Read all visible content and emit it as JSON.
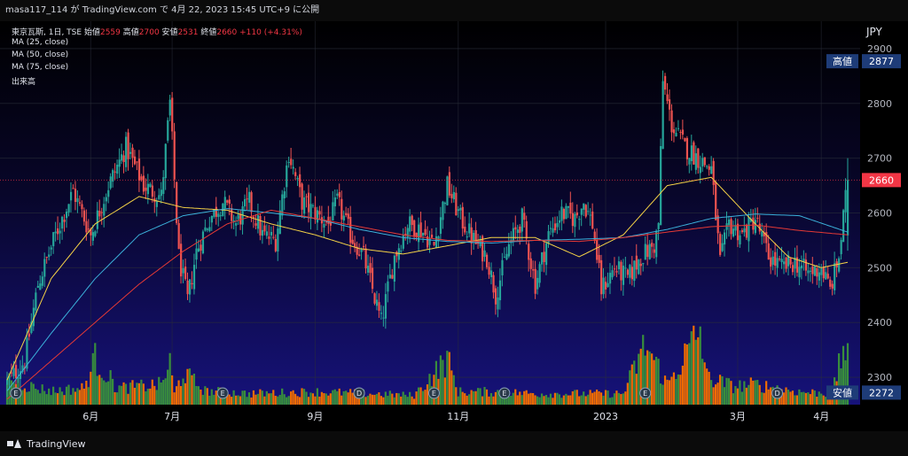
{
  "header": {
    "attribution": "masa117_114 が TradingView.com で 4月 22, 2023 15:45 UTC+9 に公開"
  },
  "legend": {
    "symbol_line_prefix": "東京瓦斯, 1日, TSE",
    "open_label": "始値",
    "open_value": "2559",
    "high_label": "高値",
    "high_value": "2700",
    "low_label": "安値",
    "low_value": "2531",
    "close_label": "終値",
    "close_value": "2660",
    "change": "+110 (+4.31%)",
    "ma25": "MA (25, close)",
    "ma50": "MA (50, close)",
    "ma75": "MA (75, close)",
    "volume": "出来高"
  },
  "price_scale": {
    "currency": "JPY",
    "high_tag_label": "高値",
    "high_tag_value": "2877",
    "last_price_tag": "2660",
    "low_tag_label": "安値",
    "low_tag_value": "2272"
  },
  "footer": {
    "brand": "TradingView"
  },
  "colors": {
    "up": "#26a69a",
    "down": "#ef5350",
    "ma25": "#f5d246",
    "ma50": "#3bb0d9",
    "ma75": "#e53935",
    "vol_up": "#388e3c",
    "vol_down": "#ef6c00",
    "tag_blue": "#1e3c78",
    "tag_red": "#f23645"
  },
  "chart_data": {
    "type": "candlestick",
    "title": "東京瓦斯, 1日, TSE",
    "ylabel": "JPY",
    "ylim": [
      2250,
      2950
    ],
    "yticks": [
      2300,
      2400,
      2500,
      2600,
      2700,
      2800,
      2900
    ],
    "x_tick_labels": [
      "6月",
      "7月",
      "9月",
      "11月",
      "2023",
      "3月",
      "4月"
    ],
    "last": {
      "open": 2559,
      "high": 2700,
      "low": 2531,
      "close": 2660,
      "change": 110,
      "change_pct": 4.31
    },
    "period_high": 2877,
    "period_low": 2272,
    "series": [
      {
        "name": "MA (25, close)",
        "anchors": [
          [
            0,
            2295
          ],
          [
            20,
            2480
          ],
          [
            40,
            2580
          ],
          [
            60,
            2630
          ],
          [
            80,
            2610
          ],
          [
            100,
            2605
          ],
          [
            120,
            2580
          ],
          [
            140,
            2560
          ],
          [
            160,
            2535
          ],
          [
            180,
            2525
          ],
          [
            200,
            2540
          ],
          [
            220,
            2555
          ],
          [
            240,
            2555
          ],
          [
            260,
            2520
          ],
          [
            280,
            2560
          ],
          [
            300,
            2650
          ],
          [
            320,
            2665
          ],
          [
            340,
            2580
          ],
          [
            355,
            2520
          ],
          [
            370,
            2500
          ],
          [
            382,
            2510
          ]
        ]
      },
      {
        "name": "MA (50, close)",
        "anchors": [
          [
            0,
            2275
          ],
          [
            20,
            2380
          ],
          [
            40,
            2480
          ],
          [
            60,
            2560
          ],
          [
            80,
            2595
          ],
          [
            100,
            2608
          ],
          [
            120,
            2600
          ],
          [
            140,
            2590
          ],
          [
            160,
            2570
          ],
          [
            180,
            2555
          ],
          [
            200,
            2548
          ],
          [
            220,
            2545
          ],
          [
            240,
            2550
          ],
          [
            260,
            2552
          ],
          [
            280,
            2555
          ],
          [
            300,
            2570
          ],
          [
            320,
            2590
          ],
          [
            340,
            2598
          ],
          [
            360,
            2595
          ],
          [
            382,
            2565
          ]
        ]
      },
      {
        "name": "MA (75, close)",
        "anchors": [
          [
            0,
            2260
          ],
          [
            20,
            2330
          ],
          [
            40,
            2400
          ],
          [
            60,
            2470
          ],
          [
            80,
            2530
          ],
          [
            100,
            2580
          ],
          [
            120,
            2605
          ],
          [
            140,
            2590
          ],
          [
            160,
            2575
          ],
          [
            180,
            2560
          ],
          [
            200,
            2550
          ],
          [
            220,
            2548
          ],
          [
            240,
            2550
          ],
          [
            260,
            2548
          ],
          [
            280,
            2555
          ],
          [
            300,
            2565
          ],
          [
            320,
            2575
          ],
          [
            340,
            2578
          ],
          [
            360,
            2568
          ],
          [
            382,
            2560
          ]
        ]
      }
    ],
    "price_anchors": [
      [
        0,
        2290
      ],
      [
        8,
        2330
      ],
      [
        14,
        2470
      ],
      [
        22,
        2560
      ],
      [
        30,
        2640
      ],
      [
        38,
        2560
      ],
      [
        46,
        2650
      ],
      [
        54,
        2720
      ],
      [
        62,
        2650
      ],
      [
        70,
        2630
      ],
      [
        74,
        2800
      ],
      [
        78,
        2520
      ],
      [
        82,
        2440
      ],
      [
        86,
        2530
      ],
      [
        92,
        2590
      ],
      [
        98,
        2620
      ],
      [
        104,
        2580
      ],
      [
        110,
        2620
      ],
      [
        116,
        2560
      ],
      [
        122,
        2550
      ],
      [
        128,
        2710
      ],
      [
        134,
        2620
      ],
      [
        140,
        2600
      ],
      [
        146,
        2580
      ],
      [
        150,
        2620
      ],
      [
        156,
        2560
      ],
      [
        162,
        2520
      ],
      [
        166,
        2460
      ],
      [
        170,
        2400
      ],
      [
        176,
        2520
      ],
      [
        182,
        2580
      ],
      [
        188,
        2570
      ],
      [
        194,
        2540
      ],
      [
        200,
        2650
      ],
      [
        206,
        2590
      ],
      [
        212,
        2550
      ],
      [
        218,
        2520
      ],
      [
        222,
        2450
      ],
      [
        228,
        2540
      ],
      [
        234,
        2590
      ],
      [
        240,
        2470
      ],
      [
        246,
        2560
      ],
      [
        252,
        2600
      ],
      [
        258,
        2590
      ],
      [
        262,
        2620
      ],
      [
        266,
        2580
      ],
      [
        270,
        2460
      ],
      [
        276,
        2500
      ],
      [
        282,
        2480
      ],
      [
        288,
        2520
      ],
      [
        294,
        2540
      ],
      [
        296,
        2580
      ],
      [
        298,
        2840
      ],
      [
        302,
        2760
      ],
      [
        308,
        2720
      ],
      [
        314,
        2700
      ],
      [
        320,
        2680
      ],
      [
        324,
        2510
      ],
      [
        328,
        2580
      ],
      [
        334,
        2560
      ],
      [
        340,
        2590
      ],
      [
        346,
        2520
      ],
      [
        352,
        2500
      ],
      [
        358,
        2510
      ],
      [
        364,
        2490
      ],
      [
        370,
        2500
      ],
      [
        374,
        2460
      ],
      [
        378,
        2520
      ],
      [
        382,
        2660
      ]
    ],
    "volume_ylim": [
      0,
      100
    ],
    "volume_anchors": [
      [
        0,
        30
      ],
      [
        10,
        20
      ],
      [
        20,
        15
      ],
      [
        35,
        18
      ],
      [
        40,
        50
      ],
      [
        50,
        18
      ],
      [
        70,
        22
      ],
      [
        74,
        45
      ],
      [
        76,
        12
      ],
      [
        80,
        35
      ],
      [
        90,
        15
      ],
      [
        110,
        12
      ],
      [
        140,
        14
      ],
      [
        165,
        12
      ],
      [
        185,
        10
      ],
      [
        200,
        50
      ],
      [
        205,
        14
      ],
      [
        220,
        14
      ],
      [
        240,
        12
      ],
      [
        260,
        12
      ],
      [
        280,
        12
      ],
      [
        290,
        65
      ],
      [
        296,
        40
      ],
      [
        300,
        22
      ],
      [
        315,
        80
      ],
      [
        318,
        30
      ],
      [
        330,
        20
      ],
      [
        340,
        22
      ],
      [
        360,
        14
      ],
      [
        375,
        12
      ],
      [
        380,
        60
      ],
      [
        382,
        70
      ]
    ],
    "event_markers": [
      {
        "label": "E",
        "bar": 4
      },
      {
        "label": "E",
        "bar": 98
      },
      {
        "label": "E",
        "bar": 194
      },
      {
        "label": "D",
        "bar": 160
      },
      {
        "label": "D",
        "bar": 350
      },
      {
        "label": "E",
        "bar": 290
      },
      {
        "label": "E",
        "bar": 226
      }
    ]
  }
}
